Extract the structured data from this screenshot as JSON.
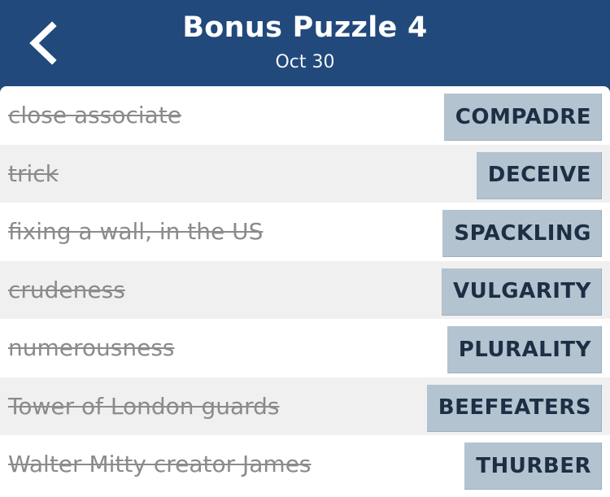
{
  "header": {
    "title": "Bonus Puzzle 4",
    "date": "Oct 30",
    "back_icon": "chevron-left-icon"
  },
  "colors": {
    "header_bg": "#21497b",
    "answer_bg": "#b4c3d0",
    "clue_text": "#8b8b8b",
    "answer_text": "#1c2f44"
  },
  "clues": [
    {
      "clue": "close associate",
      "answer": "COMPADRE",
      "solved": true
    },
    {
      "clue": "trick",
      "answer": "DECEIVE",
      "solved": true
    },
    {
      "clue": "fixing a wall, in the US",
      "answer": "SPACKLING",
      "solved": true
    },
    {
      "clue": "crudeness",
      "answer": "VULGARITY",
      "solved": true
    },
    {
      "clue": "numerousness",
      "answer": "PLURALITY",
      "solved": true
    },
    {
      "clue": "Tower of London guards",
      "answer": "BEEFEATERS",
      "solved": true
    },
    {
      "clue": "Walter Mitty creator James",
      "answer": "THURBER",
      "solved": true
    }
  ]
}
